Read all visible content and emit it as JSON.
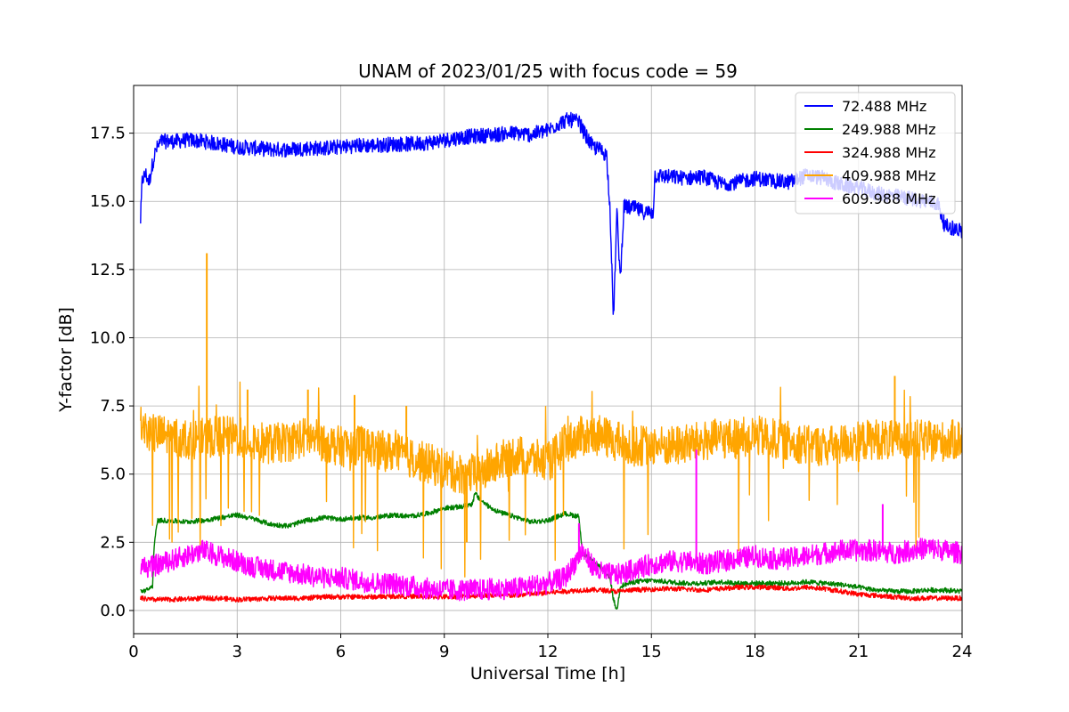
{
  "chart_data": {
    "type": "line",
    "title": "UNAM of 2023/01/25 with focus code = 59",
    "xlabel": "Universal Time [h]",
    "ylabel": "Y-factor [dB]",
    "xlim": [
      0,
      24
    ],
    "ylim": [
      -0.85,
      19.25
    ],
    "xticks": [
      0,
      3,
      6,
      9,
      12,
      15,
      18,
      21,
      24
    ],
    "xtick_labels": [
      "0",
      "3",
      "6",
      "9",
      "12",
      "15",
      "18",
      "21",
      "24"
    ],
    "yticks": [
      0,
      2.5,
      5,
      7.5,
      10,
      12.5,
      15,
      17.5
    ],
    "ytick_labels": [
      "0.0",
      "2.5",
      "5.0",
      "7.5",
      "10.0",
      "12.5",
      "15.0",
      "17.5"
    ],
    "grid": true,
    "legend_position": "top-right",
    "series": [
      {
        "name": " 72.488 MHz",
        "color": "#0000ff",
        "noise": 0.28,
        "points": [
          [
            0.2,
            14.3
          ],
          [
            0.25,
            15.8
          ],
          [
            0.35,
            16.0
          ],
          [
            0.45,
            15.7
          ],
          [
            0.55,
            16.4
          ],
          [
            0.65,
            16.9
          ],
          [
            0.8,
            17.2
          ],
          [
            1.2,
            17.2
          ],
          [
            1.6,
            17.25
          ],
          [
            2,
            17.2
          ],
          [
            2.5,
            17.1
          ],
          [
            3,
            17.0
          ],
          [
            3.5,
            16.95
          ],
          [
            4,
            16.9
          ],
          [
            4.5,
            16.9
          ],
          [
            5,
            16.95
          ],
          [
            5.5,
            16.95
          ],
          [
            6,
            17.0
          ],
          [
            6.5,
            17.05
          ],
          [
            7,
            17.05
          ],
          [
            7.5,
            17.1
          ],
          [
            8,
            17.1
          ],
          [
            8.5,
            17.15
          ],
          [
            9,
            17.25
          ],
          [
            9.5,
            17.35
          ],
          [
            10,
            17.4
          ],
          [
            10.5,
            17.45
          ],
          [
            11,
            17.5
          ],
          [
            11.5,
            17.45
          ],
          [
            12,
            17.6
          ],
          [
            12.3,
            17.85
          ],
          [
            12.6,
            18.0
          ],
          [
            12.9,
            17.9
          ],
          [
            13.1,
            17.4
          ],
          [
            13.3,
            17.0
          ],
          [
            13.5,
            16.9
          ],
          [
            13.7,
            16.7
          ],
          [
            13.8,
            14.8
          ],
          [
            13.9,
            10.6
          ],
          [
            14.0,
            14.6
          ],
          [
            14.1,
            12.1
          ],
          [
            14.2,
            14.8
          ],
          [
            14.5,
            14.75
          ],
          [
            14.8,
            14.6
          ],
          [
            15.05,
            14.6
          ],
          [
            15.1,
            15.95
          ],
          [
            15.5,
            15.9
          ],
          [
            16,
            15.85
          ],
          [
            16.5,
            15.9
          ],
          [
            17,
            15.65
          ],
          [
            17.5,
            15.7
          ],
          [
            18,
            15.85
          ],
          [
            18.5,
            15.75
          ],
          [
            19,
            15.7
          ],
          [
            19.5,
            15.95
          ],
          [
            20,
            15.85
          ],
          [
            20.5,
            15.6
          ],
          [
            21,
            15.5
          ],
          [
            21.5,
            15.3
          ],
          [
            22,
            15.2
          ],
          [
            22.5,
            15.1
          ],
          [
            23,
            15.0
          ],
          [
            23.3,
            14.9
          ],
          [
            23.5,
            14.1
          ],
          [
            23.8,
            14.0
          ],
          [
            24,
            13.9
          ]
        ]
      },
      {
        "name": " 249.988 MHz",
        "color": "#008000",
        "noise": 0.09,
        "points": [
          [
            0.2,
            0.7
          ],
          [
            0.4,
            0.75
          ],
          [
            0.55,
            0.9
          ],
          [
            0.6,
            2.5
          ],
          [
            0.7,
            3.3
          ],
          [
            1,
            3.3
          ],
          [
            1.5,
            3.25
          ],
          [
            2,
            3.3
          ],
          [
            2.5,
            3.4
          ],
          [
            3,
            3.5
          ],
          [
            3.5,
            3.35
          ],
          [
            4,
            3.15
          ],
          [
            4.5,
            3.1
          ],
          [
            5,
            3.3
          ],
          [
            5.5,
            3.4
          ],
          [
            6,
            3.35
          ],
          [
            6.5,
            3.4
          ],
          [
            7,
            3.4
          ],
          [
            7.5,
            3.5
          ],
          [
            8,
            3.45
          ],
          [
            8.5,
            3.55
          ],
          [
            9,
            3.75
          ],
          [
            9.5,
            3.8
          ],
          [
            9.8,
            3.9
          ],
          [
            9.9,
            4.3
          ],
          [
            10,
            4.1
          ],
          [
            10.3,
            3.8
          ],
          [
            10.6,
            3.6
          ],
          [
            11,
            3.45
          ],
          [
            11.5,
            3.25
          ],
          [
            12,
            3.3
          ],
          [
            12.5,
            3.55
          ],
          [
            12.9,
            3.45
          ],
          [
            13,
            2.1
          ],
          [
            13.5,
            1.6
          ],
          [
            13.8,
            1.2
          ],
          [
            13.9,
            0.4
          ],
          [
            14.0,
            0.0
          ],
          [
            14.1,
            0.9
          ],
          [
            14.5,
            1.05
          ],
          [
            15,
            1.1
          ],
          [
            15.5,
            1.05
          ],
          [
            16,
            1.0
          ],
          [
            16.5,
            1.0
          ],
          [
            17,
            1.05
          ],
          [
            17.5,
            1.0
          ],
          [
            18,
            1.0
          ],
          [
            18.5,
            1.0
          ],
          [
            19,
            1.0
          ],
          [
            19.5,
            1.05
          ],
          [
            20,
            1.0
          ],
          [
            20.5,
            0.95
          ],
          [
            21,
            0.85
          ],
          [
            21.5,
            0.75
          ],
          [
            22,
            0.7
          ],
          [
            22.5,
            0.7
          ],
          [
            23,
            0.75
          ],
          [
            23.5,
            0.75
          ],
          [
            24,
            0.7
          ]
        ]
      },
      {
        "name": " 324.988 MHz",
        "color": "#ff0000",
        "noise": 0.09,
        "points": [
          [
            0.2,
            0.45
          ],
          [
            0.5,
            0.4
          ],
          [
            1,
            0.4
          ],
          [
            1.5,
            0.42
          ],
          [
            2,
            0.45
          ],
          [
            2.5,
            0.45
          ],
          [
            3,
            0.4
          ],
          [
            3.5,
            0.42
          ],
          [
            4,
            0.45
          ],
          [
            4.5,
            0.45
          ],
          [
            5,
            0.45
          ],
          [
            5.5,
            0.5
          ],
          [
            6,
            0.5
          ],
          [
            6.5,
            0.5
          ],
          [
            7,
            0.5
          ],
          [
            7.5,
            0.52
          ],
          [
            8,
            0.52
          ],
          [
            8.5,
            0.5
          ],
          [
            9,
            0.5
          ],
          [
            9.5,
            0.52
          ],
          [
            10,
            0.55
          ],
          [
            10.5,
            0.55
          ],
          [
            11,
            0.55
          ],
          [
            11.5,
            0.6
          ],
          [
            12,
            0.65
          ],
          [
            12.5,
            0.7
          ],
          [
            13,
            0.75
          ],
          [
            13.5,
            0.75
          ],
          [
            14,
            0.7
          ],
          [
            14.5,
            0.75
          ],
          [
            15,
            0.78
          ],
          [
            15.5,
            0.8
          ],
          [
            16,
            0.78
          ],
          [
            16.5,
            0.75
          ],
          [
            17,
            0.8
          ],
          [
            17.5,
            0.85
          ],
          [
            18,
            0.85
          ],
          [
            18.5,
            0.85
          ],
          [
            19,
            0.8
          ],
          [
            19.5,
            0.85
          ],
          [
            20,
            0.8
          ],
          [
            20.5,
            0.7
          ],
          [
            21,
            0.6
          ],
          [
            21.5,
            0.55
          ],
          [
            22,
            0.5
          ],
          [
            22.5,
            0.45
          ],
          [
            23,
            0.45
          ],
          [
            23.5,
            0.45
          ],
          [
            24,
            0.45
          ]
        ]
      },
      {
        "name": " 409.988 MHz",
        "color": "#ffa500",
        "noise": 0.75,
        "points": [
          [
            0.2,
            6.8
          ],
          [
            0.5,
            6.5
          ],
          [
            1,
            6.4
          ],
          [
            1.5,
            6.3
          ],
          [
            2,
            6.3
          ],
          [
            2.5,
            6.4
          ],
          [
            3,
            6.35
          ],
          [
            3.5,
            6.2
          ],
          [
            4,
            6.1
          ],
          [
            4.5,
            6.2
          ],
          [
            5,
            6.35
          ],
          [
            5.5,
            6.2
          ],
          [
            6,
            6.0
          ],
          [
            6.5,
            6.1
          ],
          [
            7,
            5.9
          ],
          [
            7.5,
            5.8
          ],
          [
            8,
            5.6
          ],
          [
            8.5,
            5.4
          ],
          [
            9,
            5.2
          ],
          [
            9.5,
            5.0
          ],
          [
            10,
            5.0
          ],
          [
            10.5,
            5.4
          ],
          [
            11,
            5.7
          ],
          [
            11.5,
            5.6
          ],
          [
            12,
            5.4
          ],
          [
            12.5,
            6.1
          ],
          [
            13,
            6.4
          ],
          [
            13.5,
            6.4
          ],
          [
            14,
            6.2
          ],
          [
            14.5,
            6.0
          ],
          [
            15,
            6.1
          ],
          [
            15.5,
            6.0
          ],
          [
            16,
            6.1
          ],
          [
            16.5,
            6.2
          ],
          [
            17,
            6.3
          ],
          [
            17.5,
            6.3
          ],
          [
            18,
            6.4
          ],
          [
            18.5,
            6.3
          ],
          [
            19,
            6.2
          ],
          [
            19.5,
            6.1
          ],
          [
            20,
            6.0
          ],
          [
            20.5,
            6.1
          ],
          [
            21,
            6.2
          ],
          [
            21.5,
            6.3
          ],
          [
            22,
            6.2
          ],
          [
            22.5,
            6.3
          ],
          [
            23,
            6.2
          ],
          [
            23.5,
            6.2
          ],
          [
            24,
            6.3
          ]
        ]
      },
      {
        "name": " 609.988 MHz",
        "color": "#ff00ff",
        "noise": 0.4,
        "points": [
          [
            0.2,
            1.6
          ],
          [
            0.5,
            1.6
          ],
          [
            1,
            1.8
          ],
          [
            1.5,
            2.0
          ],
          [
            2,
            2.2
          ],
          [
            2.5,
            2.0
          ],
          [
            3,
            1.8
          ],
          [
            3.5,
            1.6
          ],
          [
            4,
            1.5
          ],
          [
            4.5,
            1.4
          ],
          [
            5,
            1.3
          ],
          [
            5.5,
            1.2
          ],
          [
            6,
            1.2
          ],
          [
            6.5,
            1.1
          ],
          [
            7,
            1.0
          ],
          [
            7.5,
            1.0
          ],
          [
            8,
            0.9
          ],
          [
            8.5,
            0.8
          ],
          [
            9,
            0.75
          ],
          [
            9.5,
            0.75
          ],
          [
            10,
            0.75
          ],
          [
            10.5,
            0.8
          ],
          [
            11,
            0.8
          ],
          [
            11.5,
            0.9
          ],
          [
            12,
            1.0
          ],
          [
            12.5,
            1.2
          ],
          [
            13,
            2.2
          ],
          [
            13.2,
            1.8
          ],
          [
            13.5,
            1.4
          ],
          [
            14,
            1.3
          ],
          [
            14.5,
            1.5
          ],
          [
            15,
            1.7
          ],
          [
            15.5,
            1.8
          ],
          [
            16,
            1.8
          ],
          [
            16.5,
            1.7
          ],
          [
            17,
            1.8
          ],
          [
            17.5,
            1.9
          ],
          [
            18,
            2.0
          ],
          [
            18.5,
            1.9
          ],
          [
            19,
            1.9
          ],
          [
            19.5,
            2.0
          ],
          [
            20,
            2.1
          ],
          [
            20.5,
            2.2
          ],
          [
            21,
            2.2
          ],
          [
            21.5,
            2.2
          ],
          [
            22,
            2.1
          ],
          [
            22.5,
            2.2
          ],
          [
            23,
            2.3
          ],
          [
            23.5,
            2.2
          ],
          [
            24,
            2.1
          ]
        ]
      }
    ],
    "spikes": [
      {
        "series": 3,
        "x": 2.12,
        "y": 13.1
      },
      {
        "series": 3,
        "x": 3.3,
        "y": 8.1
      },
      {
        "series": 3,
        "x": 5.05,
        "y": 8.1
      },
      {
        "series": 3,
        "x": 6.4,
        "y": 7.9
      },
      {
        "series": 3,
        "x": 7.9,
        "y": 7.5
      },
      {
        "series": 3,
        "x": 9.65,
        "y": 2.5
      },
      {
        "series": 3,
        "x": 22.05,
        "y": 8.6
      },
      {
        "series": 4,
        "x": 16.3,
        "y": 5.9
      },
      {
        "series": 4,
        "x": 12.9,
        "y": 3.2
      },
      {
        "series": 4,
        "x": 21.7,
        "y": 3.9
      }
    ]
  }
}
